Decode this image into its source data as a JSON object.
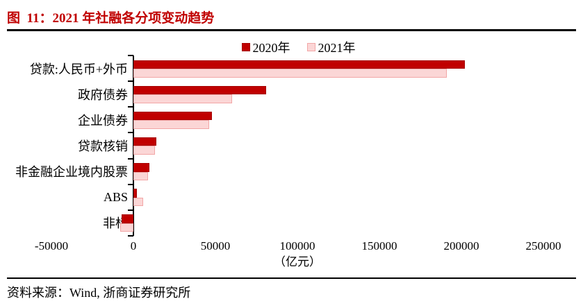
{
  "figure": {
    "title": "图  11：2021 年社融各分项变动趋势",
    "source_label": "资料来源：",
    "source": "Wind, 浙商证券研究所"
  },
  "chart_data": {
    "type": "bar",
    "orientation": "horizontal",
    "title": "图 11：2021 年社融各分项变动趋势",
    "unit_label": "（亿元）",
    "categories": [
      "贷款:人民币+外币",
      "政府债券",
      "企业债券",
      "贷款核销",
      "非金融企业境内股票",
      "ABS",
      "非标"
    ],
    "series": [
      {
        "name": "2020年",
        "color": "#c00000",
        "border_color": "#a50000",
        "values": [
          202000,
          81000,
          48000,
          14000,
          9700,
          2000,
          -7000
        ]
      },
      {
        "name": "2021年",
        "color": "#fbd6d6",
        "border_color": "#f2a6a6",
        "values": [
          191000,
          60000,
          46000,
          13000,
          8900,
          6000,
          -8000
        ]
      }
    ],
    "xlim": [
      -50000,
      250000
    ],
    "xticks": [
      -50000,
      0,
      50000,
      100000,
      150000,
      200000,
      250000
    ],
    "legend_position": "top-center",
    "grid": false
  },
  "colors": {
    "title_red": "#c00000",
    "bar_2020": "#c00000",
    "bar_2021": "#fbd6d6",
    "rule": "#000000",
    "text": "#000000",
    "background": "#ffffff"
  }
}
